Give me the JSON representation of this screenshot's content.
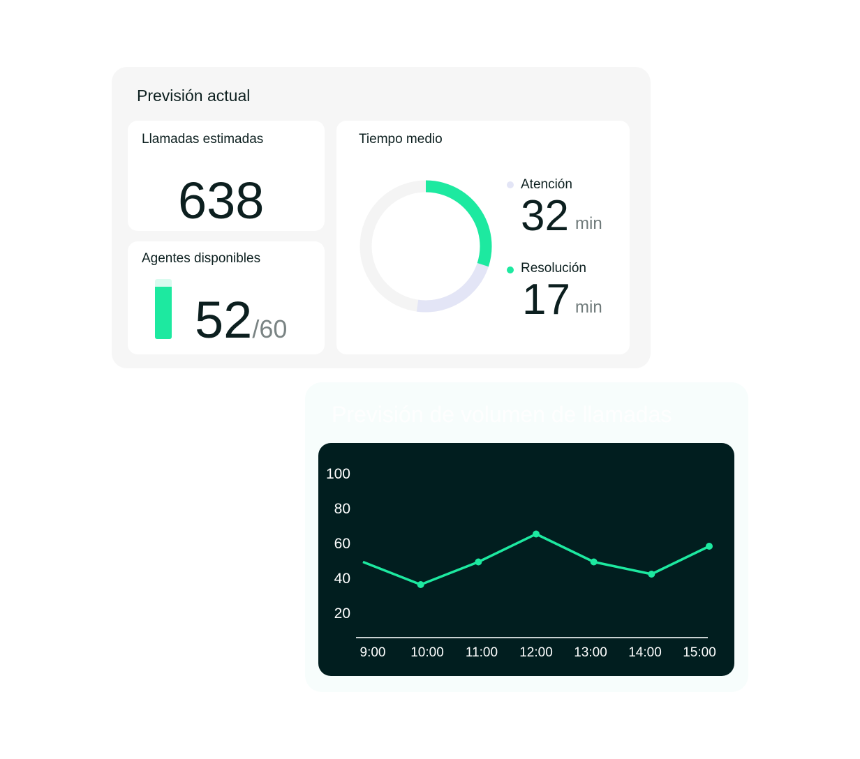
{
  "forecast": {
    "title": "Previsión actual",
    "calls": {
      "label": "Llamadas estimadas",
      "value": "638"
    },
    "agents": {
      "label": "Agentes disponibles",
      "value": "52",
      "total": "/60",
      "fill_fraction": 0.867
    },
    "avg_time": {
      "label": "Tiempo medio",
      "attention": {
        "label": "Atención",
        "value": "32",
        "unit": "min",
        "color": "#e3e5f6"
      },
      "resolution": {
        "label": "Resolución",
        "value": "17",
        "unit": "min",
        "color": "#1de9a0"
      }
    }
  },
  "volume": {
    "title": "Previsión de volumen de llamadas"
  },
  "chart_data": {
    "type": "line",
    "categories": [
      "9:00",
      "10:00",
      "11:00",
      "12:00",
      "13:00",
      "14:00",
      "15:00"
    ],
    "series": [
      {
        "values": [
          49,
          36,
          49,
          65,
          49,
          42,
          58
        ],
        "color": "#1de9a0"
      }
    ],
    "yticks": [
      "100",
      "80",
      "60",
      "40",
      "20"
    ],
    "ylim": [
      0,
      100
    ],
    "grid": false
  }
}
